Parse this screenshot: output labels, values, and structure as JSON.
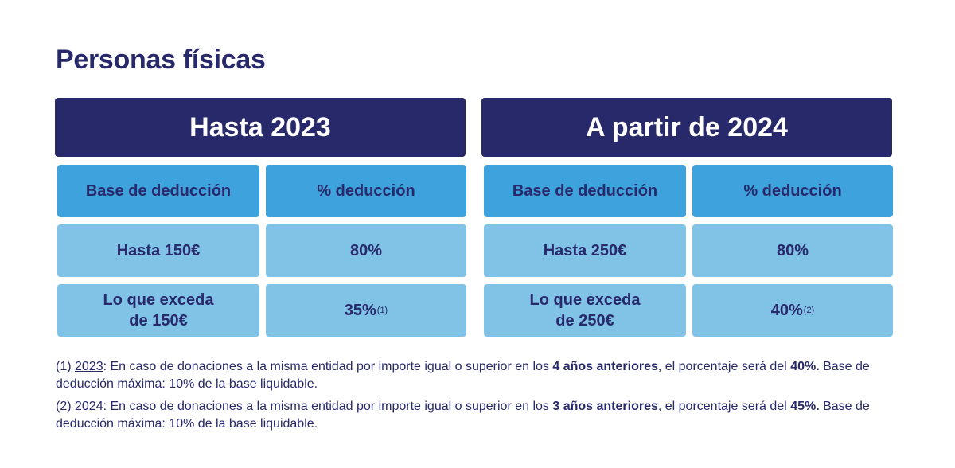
{
  "title": "Personas físicas",
  "panels": [
    {
      "header": "Hasta 2023",
      "col_headers": [
        "Base de deducción",
        "% deducción"
      ],
      "rows": [
        {
          "base": "Hasta 150€",
          "pct": "80%",
          "sup": ""
        },
        {
          "base_line1": "Lo que exceda",
          "base_line2": "de 150€",
          "pct": "35%",
          "sup": "(1)"
        }
      ]
    },
    {
      "header": "A partir de 2024",
      "col_headers": [
        "Base de deducción",
        "% deducción"
      ],
      "rows": [
        {
          "base": "Hasta 250€",
          "pct": "80%",
          "sup": ""
        },
        {
          "base_line1": "Lo que exceda",
          "base_line2": "de 250€",
          "pct": "40%",
          "sup": "(2)"
        }
      ]
    }
  ],
  "notes": [
    {
      "prefix": "(1) ",
      "year": "2023",
      "text_a": ": En caso de donaciones a la misma entidad por importe igual o superior en los ",
      "bold_a": "4 años anteriores",
      "text_b": ", el porcentaje será del ",
      "bold_b": "40%.",
      "text_c": " Base de deducción máxima: 10% de la base liquidable."
    },
    {
      "prefix": "(2) ",
      "year": "2024",
      "text_a": ": En caso de donaciones a la misma entidad por importe igual o superior en los ",
      "bold_a": "3 años anteriores",
      "text_b": ", el porcentaje será del ",
      "bold_b": "45%.",
      "text_c": " Base de deducción máxima: 10% de la base liquidable."
    }
  ],
  "colors": {
    "navy": "#27296a",
    "blue_header": "#3ea3dc",
    "blue_light": "#80c3e7"
  }
}
